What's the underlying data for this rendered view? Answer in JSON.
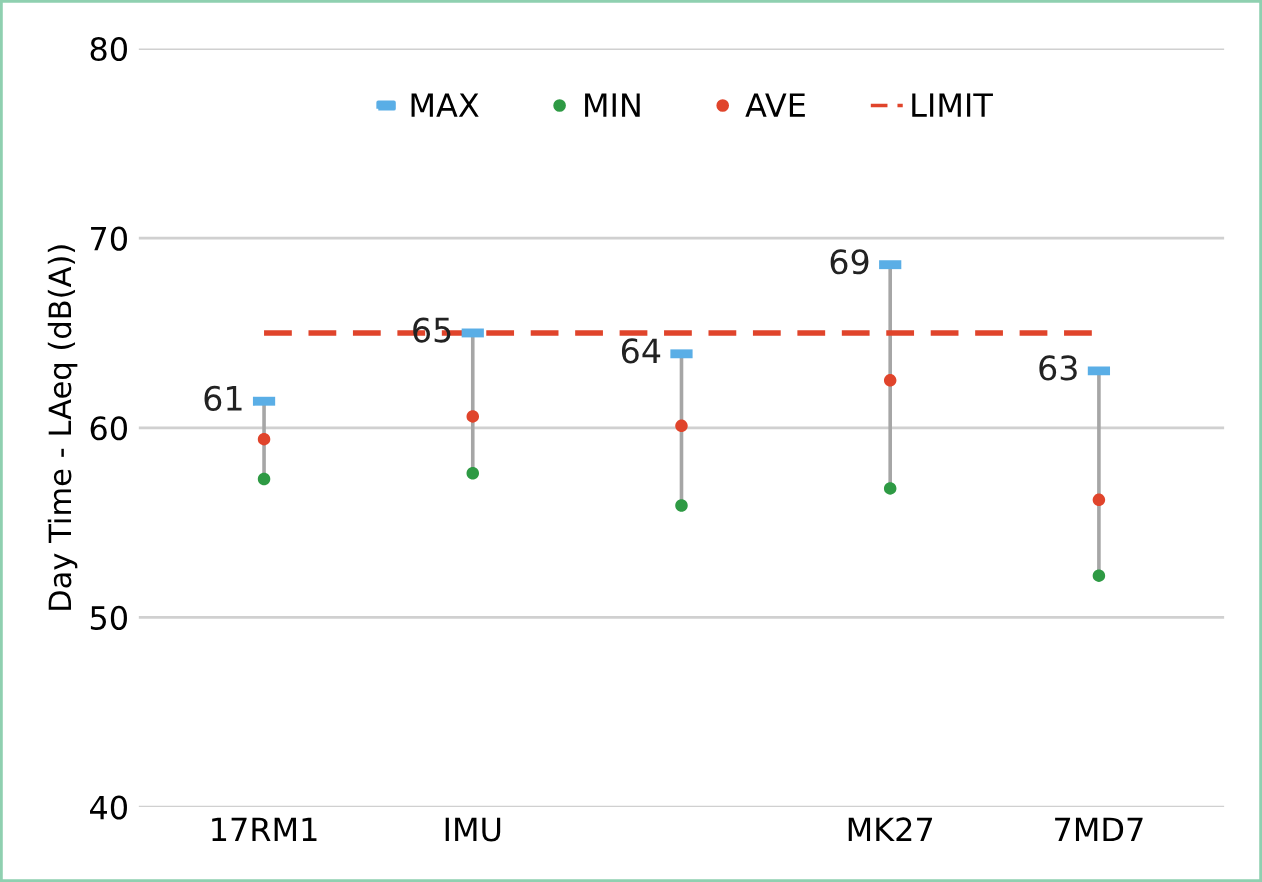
{
  "chart_data": {
    "type": "scatter",
    "ylabel": "Day Time - LAeq (dB(A))",
    "categories": [
      "17RM1",
      "IMU",
      null,
      "MK27",
      "7MD7"
    ],
    "series": [
      {
        "name": "MAX",
        "color": "#5aaee6",
        "values": [
          61.4,
          65.0,
          63.9,
          68.6,
          63.0
        ],
        "value_labels": [
          "61",
          "65",
          "64",
          "69",
          "63"
        ]
      },
      {
        "name": "MIN",
        "marker": "circle",
        "color": "#2e9a44",
        "values": [
          57.3,
          57.6,
          55.9,
          56.8,
          52.2
        ]
      },
      {
        "name": "AVE",
        "marker": "circle",
        "color": "#e0442b",
        "values": [
          59.4,
          60.6,
          60.1,
          62.5,
          56.2
        ]
      },
      {
        "name": "LIMIT",
        "type": "line",
        "line_style": "dashed",
        "color": "#e0442b",
        "values": [
          65,
          65,
          65,
          65,
          65
        ]
      }
    ],
    "ylim": [
      40,
      80
    ],
    "yticks": [
      40,
      50,
      60,
      70,
      80
    ],
    "grid": "y",
    "legend": "top"
  }
}
